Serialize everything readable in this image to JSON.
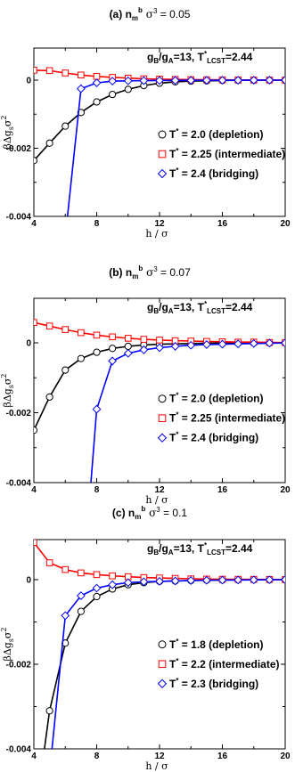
{
  "chart_data": [
    {
      "type": "line",
      "title": {
        "bold": "(a) n",
        "sub": "m",
        "sup": "b",
        "sigma": " σ",
        "exp": "3",
        "rest": " = 0.05"
      },
      "annotation": {
        "a": "g",
        "a_sub": "B",
        "b": "/g",
        "b_sub": "A",
        "c": "=13, T",
        "c_sup": "*",
        "c_sub": "LCST",
        "d": "=2.44"
      },
      "xlabel": "h / σ",
      "ylabel": {
        "main": "βΔg",
        "sub": "s",
        "tail": "σ",
        "sup": "2"
      },
      "xlim": [
        4,
        20
      ],
      "ylim": [
        -0.004,
        0.0008
      ],
      "xticks": [
        "4",
        "8",
        "12",
        "16",
        "20"
      ],
      "yticks": [
        {
          "value": 0,
          "label": "0"
        },
        {
          "value": -0.002,
          "label": "-0.002"
        },
        {
          "value": -0.004,
          "label": "-0.004"
        }
      ],
      "series": [
        {
          "name": "T",
          "sup": "*",
          "rest": " = 2.0 (depletion)",
          "color": "#000000",
          "marker": "circle",
          "x": [
            4,
            5,
            6,
            7,
            8,
            9,
            10,
            11,
            12,
            13,
            14,
            15,
            16,
            17,
            18,
            19,
            20
          ],
          "y": [
            -0.00236,
            -0.00185,
            -0.00135,
            -0.00095,
            -0.00064,
            -0.00042,
            -0.00027,
            -0.00016,
            -9e-05,
            -5e-05,
            -3e-05,
            -2e-05,
            -1e-05,
            -5e-06,
            -3e-06,
            -1e-06,
            0
          ]
        },
        {
          "name": "T",
          "sup": "*",
          "rest": " = 2.25 (intermediate)",
          "color": "#ff0000",
          "marker": "square",
          "x": [
            4,
            5,
            6,
            7,
            8,
            9,
            10,
            11,
            12,
            13,
            14,
            15,
            16,
            17,
            18,
            19,
            20
          ],
          "y": [
            0.00029,
            0.00028,
            0.00021,
            0.00015,
            0.00011,
            8e-05,
            6e-05,
            4e-05,
            3e-05,
            2e-05,
            1.5e-05,
            1e-05,
            8e-06,
            5e-06,
            3e-06,
            2e-06,
            1e-06
          ]
        },
        {
          "name": "T",
          "sup": "*",
          "rest": " = 2.4 (bridging)",
          "color": "#0000ff",
          "marker": "diamond",
          "x": [
            6,
            7,
            8,
            9,
            10,
            11,
            12,
            13,
            14,
            15,
            16,
            17,
            18,
            19,
            20
          ],
          "y": [
            -0.0046,
            -0.00025,
            -8e-05,
            -3e-05,
            -2e-05,
            -1.5e-05,
            -1e-05,
            -8e-06,
            -6e-06,
            -5e-06,
            -4e-06,
            -3e-06,
            -2e-06,
            -1e-06,
            0
          ],
          "xm": [
            7,
            8,
            9,
            10,
            11,
            12,
            13,
            14,
            15,
            16,
            17,
            18,
            19,
            20
          ]
        }
      ]
    },
    {
      "type": "line",
      "title": {
        "bold": "(b) n",
        "sub": "m",
        "sup": "b",
        "sigma": " σ",
        "exp": "3",
        "rest": " = 0.07"
      },
      "annotation": {
        "a": "g",
        "a_sub": "B",
        "b": "/g",
        "b_sub": "A",
        "c": "=13, T",
        "c_sup": "*",
        "c_sub": "LCST",
        "d": "=2.44"
      },
      "xlabel": "h / σ",
      "ylabel": {
        "main": "βΔg",
        "sub": "s",
        "tail": "σ",
        "sup": "2"
      },
      "xlim": [
        4,
        20
      ],
      "ylim": [
        -0.004,
        0.001
      ],
      "xticks": [
        "4",
        "8",
        "12",
        "16",
        "20"
      ],
      "yticks": [
        {
          "value": 0,
          "label": "0"
        },
        {
          "value": -0.002,
          "label": "-0.002"
        },
        {
          "value": -0.004,
          "label": "-0.004"
        }
      ],
      "series": [
        {
          "name": "T",
          "sup": "*",
          "rest": " = 2.0 (depletion)",
          "color": "#000000",
          "marker": "circle",
          "x": [
            4,
            5,
            6,
            7,
            8,
            9,
            10,
            11,
            12,
            13,
            14,
            15,
            16,
            17,
            18,
            19,
            20
          ],
          "y": [
            -0.0025,
            -0.00155,
            -0.00078,
            -0.00045,
            -0.00027,
            -0.00016,
            -0.0001,
            -6e-05,
            -4e-05,
            -3e-05,
            -2e-05,
            -1e-05,
            -8e-06,
            -5e-06,
            -3e-06,
            -1e-06,
            0
          ]
        },
        {
          "name": "T",
          "sup": "*",
          "rest": " = 2.25 (intermediate)",
          "color": "#ff0000",
          "marker": "square",
          "x": [
            4,
            5,
            6,
            7,
            8,
            9,
            10,
            11,
            12,
            13,
            14,
            15,
            16,
            17,
            18,
            19,
            20
          ],
          "y": [
            0.00058,
            0.00048,
            0.00038,
            0.00029,
            0.00022,
            0.00017,
            0.00013,
            0.0001,
            8e-05,
            6e-05,
            5e-05,
            4e-05,
            3e-05,
            2e-05,
            2e-05,
            1e-05,
            8e-06
          ]
        },
        {
          "name": "T",
          "sup": "*",
          "rest": " = 2.4 (bridging)",
          "color": "#0000ff",
          "marker": "diamond",
          "x": [
            7.6,
            8,
            9,
            10,
            11,
            12,
            13,
            14,
            15,
            16,
            17,
            18,
            19,
            20
          ],
          "y": [
            -0.0042,
            -0.0019,
            -0.00052,
            -0.0003,
            -0.0002,
            -0.00014,
            -0.0001,
            -7e-05,
            -5e-05,
            -4e-05,
            -3e-05,
            -2e-05,
            -1e-05,
            -5e-06
          ],
          "xm": [
            8,
            9,
            10,
            11,
            12,
            13,
            14,
            15,
            16,
            17,
            18,
            19,
            20
          ]
        }
      ]
    },
    {
      "type": "line",
      "title": {
        "bold": "(c) n",
        "sub": "m",
        "sup": "b",
        "sigma": " σ",
        "exp": "3",
        "rest": " = 0.1"
      },
      "annotation": {
        "a": "g",
        "a_sub": "B",
        "b": "/g",
        "b_sub": "A",
        "c": "=13, T",
        "c_sup": "*",
        "c_sub": "LCST",
        "d": "=2.44"
      },
      "xlabel": "h / σ",
      "ylabel": {
        "main": "βΔg",
        "sub": "s",
        "tail": "σ",
        "sup": "2"
      },
      "xlim": [
        4,
        20
      ],
      "ylim": [
        -0.004,
        0.001
      ],
      "xticks": [
        "4",
        "8",
        "12",
        "16",
        "20"
      ],
      "yticks": [
        {
          "value": 0,
          "label": "0"
        },
        {
          "value": -0.002,
          "label": "-0.002"
        },
        {
          "value": -0.004,
          "label": "-0.004"
        }
      ],
      "series": [
        {
          "name": "T",
          "sup": "*",
          "rest": " = 1.8 (depletion)",
          "color": "#000000",
          "marker": "circle",
          "x": [
            4.6,
            5,
            6,
            7,
            8,
            9,
            10,
            11,
            12,
            13,
            14,
            15,
            16,
            17,
            18,
            19,
            20
          ],
          "y": [
            -0.0042,
            -0.0031,
            -0.0015,
            -0.00075,
            -0.0004,
            -0.00022,
            -0.00012,
            -7e-05,
            -4e-05,
            -3e-05,
            -2e-05,
            -1e-05,
            -8e-06,
            -5e-06,
            -3e-06,
            -1e-06,
            0
          ],
          "xm": [
            5,
            6,
            7,
            8,
            9,
            10,
            11,
            12,
            13,
            14,
            15,
            16,
            17,
            18,
            19,
            20
          ]
        },
        {
          "name": "T",
          "sup": "*",
          "rest": " = 2.2 (intermediate)",
          "color": "#ff0000",
          "marker": "square",
          "x": [
            4,
            5,
            6,
            7,
            8,
            9,
            10,
            11,
            12,
            13,
            14,
            15,
            16,
            17,
            18,
            19,
            20
          ],
          "y": [
            0.00088,
            0.0004,
            0.00024,
            0.00016,
            0.00012,
            9e-05,
            7e-05,
            5e-05,
            4e-05,
            3e-05,
            2e-05,
            1.5e-05,
            1e-05,
            8e-06,
            6e-06,
            4e-06,
            2e-06
          ]
        },
        {
          "name": "T",
          "sup": "*",
          "rest": " = 2.3 (bridging)",
          "color": "#0000ff",
          "marker": "diamond",
          "x": [
            5.1,
            6,
            7,
            8,
            9,
            10,
            11,
            12,
            13,
            14,
            15,
            16,
            17,
            18,
            19,
            20
          ],
          "y": [
            -0.0042,
            -0.00085,
            -0.00038,
            -0.0002,
            -0.00012,
            -7e-05,
            -5e-05,
            -4e-05,
            -3e-05,
            -2e-05,
            -1.5e-05,
            -1e-05,
            -8e-06,
            -5e-06,
            -3e-06,
            -1e-06
          ],
          "xm": [
            6,
            7,
            8,
            9,
            10,
            11,
            12,
            13,
            14,
            15,
            16,
            17,
            18,
            19,
            20
          ]
        }
      ]
    }
  ]
}
